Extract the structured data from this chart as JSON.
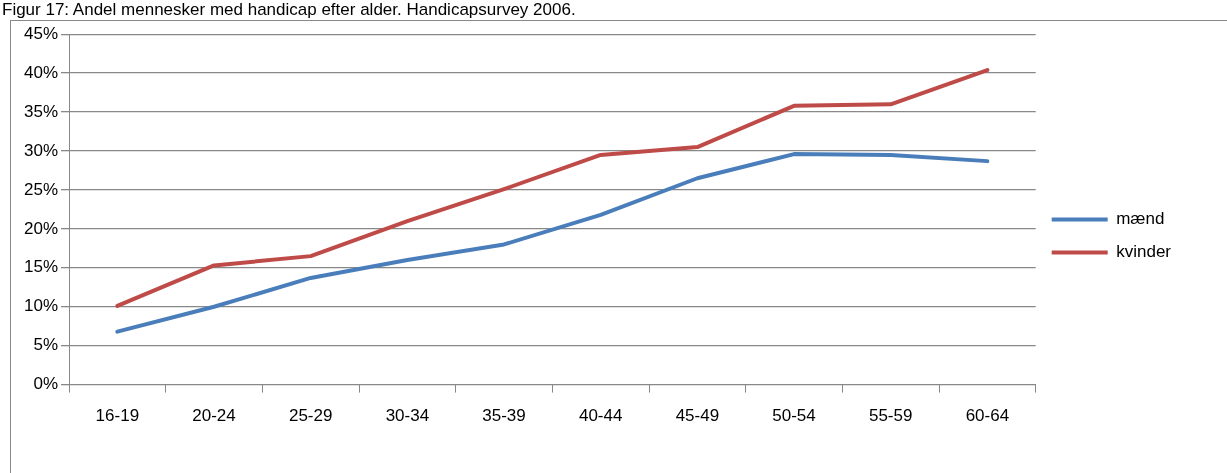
{
  "chart_data": {
    "type": "line",
    "title": "Figur 17: Andel mennesker med handicap efter alder. Handicapsurvey 2006.",
    "categories": [
      "16-19",
      "20-24",
      "25-29",
      "30-34",
      "35-39",
      "40-44",
      "45-49",
      "50-54",
      "55-59",
      "60-64"
    ],
    "series": [
      {
        "name": "mænd",
        "color": "#4a7ebb",
        "values": [
          6.8,
          10,
          13.7,
          16,
          18,
          21.8,
          26.5,
          29.6,
          29.5,
          28.7
        ]
      },
      {
        "name": "kvinder",
        "color": "#be4b48",
        "values": [
          10.1,
          15.3,
          16.5,
          21,
          25.1,
          29.5,
          30.5,
          35.8,
          36,
          40.4
        ]
      }
    ],
    "ylim": [
      0,
      45
    ],
    "yticks": [
      {
        "value": 0,
        "label": "0%"
      },
      {
        "value": 5,
        "label": "5%"
      },
      {
        "value": 10,
        "label": "10%"
      },
      {
        "value": 15,
        "label": "15%"
      },
      {
        "value": 20,
        "label": "20%"
      },
      {
        "value": 25,
        "label": "25%"
      },
      {
        "value": 30,
        "label": "30%"
      },
      {
        "value": 35,
        "label": "35%"
      },
      {
        "value": 40,
        "label": "40%"
      },
      {
        "value": 45,
        "label": "45%"
      }
    ],
    "grid": "y",
    "legend": "right",
    "marker": "none",
    "line_style": "solid"
  }
}
